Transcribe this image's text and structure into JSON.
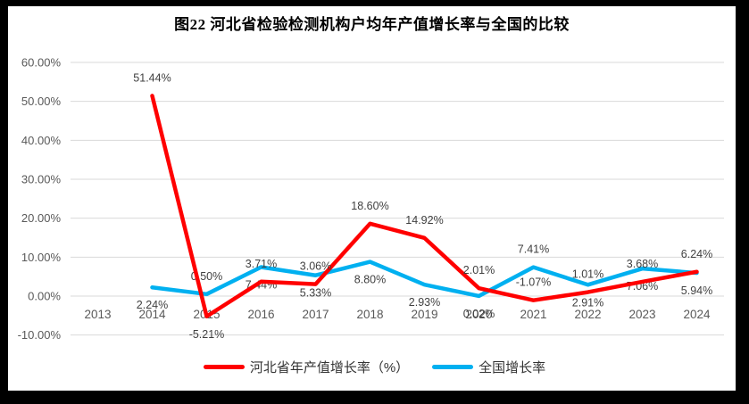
{
  "frame": {
    "background": "#000000",
    "surface": "#ffffff"
  },
  "chart_data": {
    "type": "line",
    "title": "图22 河北省检验检测机构户均年产值增长率与全国的比较",
    "categories": [
      "2013",
      "2014",
      "2015",
      "2016",
      "2017",
      "2018",
      "2019",
      "2020",
      "2021",
      "2022",
      "2023",
      "2024"
    ],
    "series": [
      {
        "name": "河北省年产值增长率（%）",
        "color": "#FF0000",
        "values": [
          null,
          51.44,
          -5.21,
          3.71,
          3.06,
          18.6,
          14.92,
          2.01,
          -1.07,
          1.01,
          3.68,
          6.24
        ],
        "label_side": [
          null,
          "above",
          "below",
          "above",
          "above",
          "above",
          "above",
          "above",
          "above",
          "above",
          "above",
          "above"
        ]
      },
      {
        "name": "全国增长率",
        "color": "#00B0F0",
        "values": [
          null,
          2.24,
          0.5,
          7.44,
          5.33,
          8.8,
          2.93,
          0.02,
          7.41,
          2.91,
          7.06,
          5.94
        ],
        "label_side": [
          null,
          "below",
          "above",
          "below",
          "below",
          "below",
          "below",
          "below",
          "above",
          "below",
          "below",
          "below"
        ]
      }
    ],
    "ylim": [
      -10,
      60
    ],
    "ytick_step": 10,
    "yticks": [
      "60.00%",
      "50.00%",
      "40.00%",
      "30.00%",
      "20.00%",
      "10.00%",
      "0.00%",
      "-10.00%"
    ],
    "grid": true,
    "legend_position": "bottom",
    "colors": {
      "gridline": "#D9D9D9",
      "axis_text": "#595959",
      "data_label_text": "#404040"
    }
  }
}
